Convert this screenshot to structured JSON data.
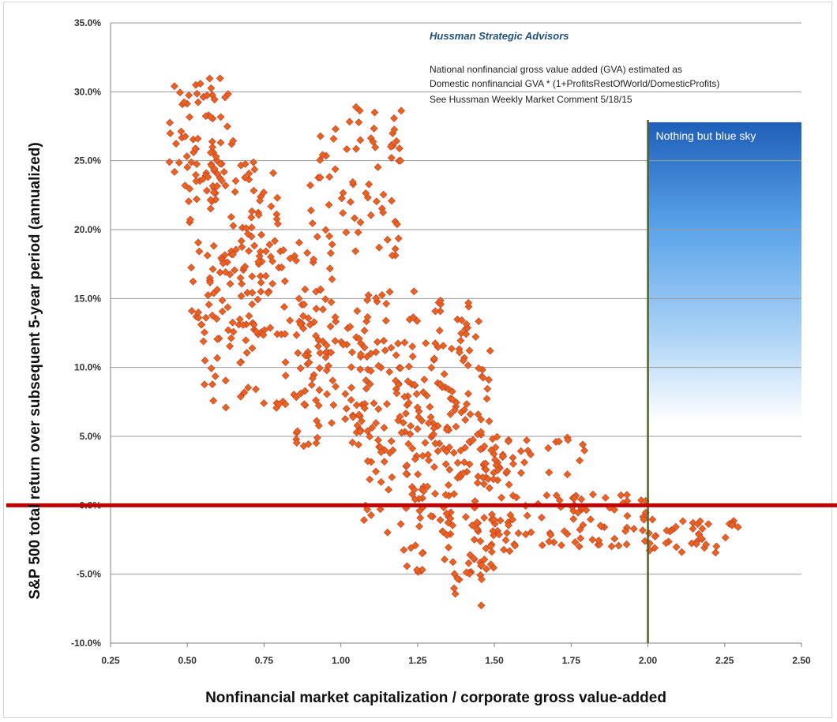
{
  "chart_data": {
    "type": "scatter",
    "title": "",
    "xlabel": "Nonfinancial market capitalization / corporate gross value-added",
    "ylabel": "S&P 500 total return over subsequent 5-year period (annualized)",
    "xlim": [
      0.25,
      2.5
    ],
    "ylim": [
      -0.1,
      0.35
    ],
    "x_ticks": [
      "0.25",
      "0.50",
      "0.75",
      "1.00",
      "1.25",
      "1.50",
      "1.75",
      "2.00",
      "2.25",
      "2.50"
    ],
    "y_ticks": [
      "-10.0%",
      "-5.0%",
      "0.0%",
      "5.0%",
      "10.0%",
      "15.0%",
      "20.0%",
      "25.0%",
      "30.0%",
      "35.0%"
    ],
    "grid": "horizontal",
    "marker": "diamond",
    "marker_color": "#e8641e",
    "annotations": {
      "source": "Hussman Strategic Advisors",
      "lines": [
        "National nonfinancial gross value added (GVA) estimated as",
        "Domestic nonfinancial GVA * (1+ProfitsRestOfWorld/DomesticProfits)",
        "See Hussman Weekly Market Comment  5/18/15"
      ],
      "shaded_region_label": "Nothing but blue sky",
      "shaded_region_x_start": 2.0,
      "reference_line_y": 0.0,
      "reference_line_color": "#c00000",
      "vertical_line_x": 2.0,
      "vertical_line_color": "#4f6228"
    },
    "clusters": [
      {
        "x": [
          0.44,
          0.65
        ],
        "y": [
          0.22,
          0.31
        ]
      },
      {
        "x": [
          0.5,
          0.8
        ],
        "y": [
          0.12,
          0.25
        ]
      },
      {
        "x": [
          0.55,
          1.0
        ],
        "y": [
          0.07,
          0.2
        ]
      },
      {
        "x": [
          0.9,
          1.2
        ],
        "y": [
          0.18,
          0.29
        ]
      },
      {
        "x": [
          0.85,
          1.25
        ],
        "y": [
          0.04,
          0.16
        ]
      },
      {
        "x": [
          1.05,
          1.5
        ],
        "y": [
          -0.02,
          0.12
        ]
      },
      {
        "x": [
          1.2,
          1.55
        ],
        "y": [
          -0.05,
          0.05
        ]
      },
      {
        "x": [
          1.25,
          1.45
        ],
        "y": [
          0.02,
          0.16
        ]
      },
      {
        "x": [
          1.45,
          1.8
        ],
        "y": [
          -0.03,
          0.05
        ]
      },
      {
        "x": [
          1.75,
          2.0
        ],
        "y": [
          -0.03,
          0.01
        ]
      },
      {
        "x": [
          2.0,
          2.3
        ],
        "y": [
          -0.035,
          -0.01
        ]
      },
      {
        "x": [
          1.35,
          1.48
        ],
        "y": [
          -0.075,
          -0.03
        ]
      }
    ]
  }
}
